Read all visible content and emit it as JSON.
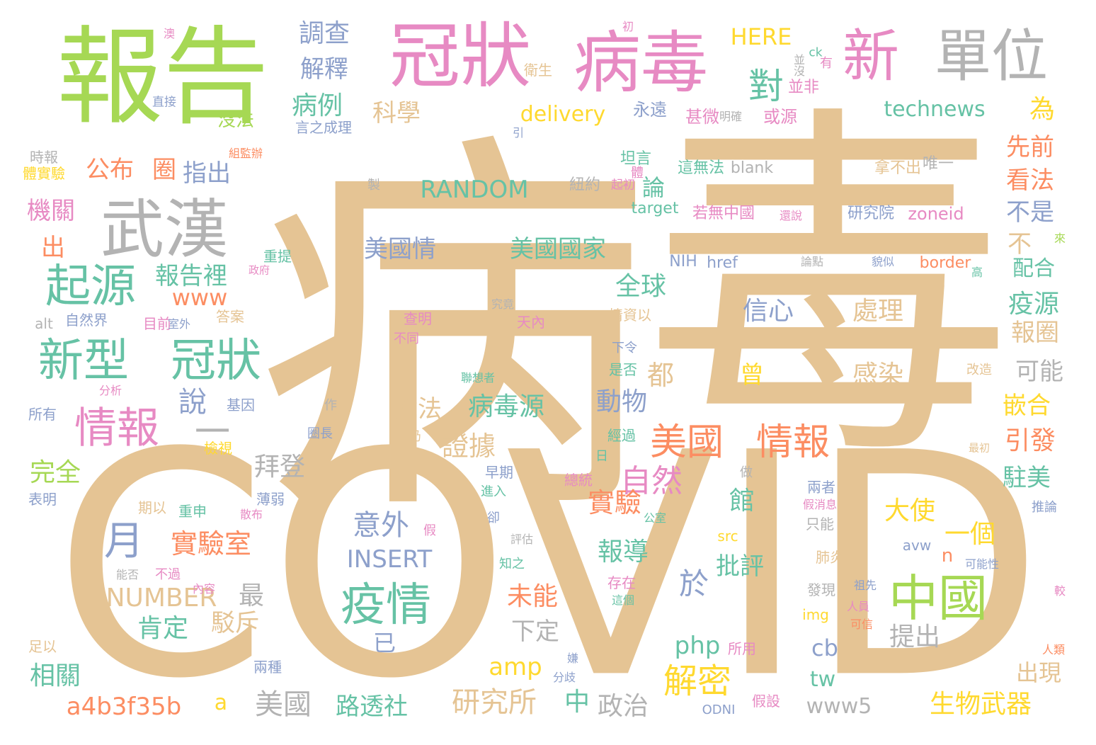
{
  "palette": {
    "tan": "#e5c494",
    "green": "#a6d854",
    "pink": "#e78ac3",
    "gray": "#b3b3b3",
    "teal": "#66c2a5",
    "blue": "#8da0cb",
    "orange": "#fc8d62",
    "yellow": "#ffd92f"
  },
  "words": [
    {
      "text": "病",
      "color": "tan"
    },
    {
      "text": "毒",
      "color": "tan"
    },
    {
      "text": "COVID",
      "color": "tan"
    },
    {
      "text": "報告",
      "color": "green"
    },
    {
      "text": "冠狀",
      "color": "pink"
    },
    {
      "text": "病毒",
      "color": "pink"
    },
    {
      "text": "新",
      "color": "pink"
    },
    {
      "text": "單位",
      "color": "gray"
    },
    {
      "text": "武漢",
      "color": "gray"
    },
    {
      "text": "起源",
      "color": "teal"
    },
    {
      "text": "新型",
      "color": "teal"
    },
    {
      "text": "冠狀",
      "color": "teal"
    },
    {
      "text": "情報",
      "color": "pink"
    },
    {
      "text": "中國",
      "color": "green"
    },
    {
      "text": "疫情",
      "color": "teal"
    },
    {
      "text": "月",
      "color": "blue"
    },
    {
      "text": "美國",
      "color": "orange"
    },
    {
      "text": "情報",
      "color": "orange"
    },
    {
      "text": "對",
      "color": "teal"
    },
    {
      "text": "調查",
      "color": "blue"
    },
    {
      "text": "解釋",
      "color": "blue"
    },
    {
      "text": "病例",
      "color": "teal"
    },
    {
      "text": "沒法",
      "color": "green"
    },
    {
      "text": "科學",
      "color": "tan"
    },
    {
      "text": "delivery",
      "color": "yellow"
    },
    {
      "text": "HERE",
      "color": "yellow"
    },
    {
      "text": "technews",
      "color": "teal"
    },
    {
      "text": "為",
      "color": "yellow"
    },
    {
      "text": "先前",
      "color": "orange"
    },
    {
      "text": "看法",
      "color": "orange"
    },
    {
      "text": "不是",
      "color": "blue"
    },
    {
      "text": "公布",
      "color": "orange"
    },
    {
      "text": "圈",
      "color": "orange"
    },
    {
      "text": "指出",
      "color": "blue"
    },
    {
      "text": "RANDOM",
      "color": "teal"
    },
    {
      "text": "機關",
      "color": "pink"
    },
    {
      "text": "論",
      "color": "teal"
    },
    {
      "text": "出",
      "color": "orange"
    },
    {
      "text": "美國情",
      "color": "blue"
    },
    {
      "text": "美國國家",
      "color": "teal"
    },
    {
      "text": "報告裡",
      "color": "teal"
    },
    {
      "text": "www",
      "color": "orange"
    },
    {
      "text": "全球",
      "color": "teal"
    },
    {
      "text": "不",
      "color": "tan"
    },
    {
      "text": "配合",
      "color": "teal"
    },
    {
      "text": "疫源",
      "color": "teal"
    },
    {
      "text": "信心",
      "color": "blue"
    },
    {
      "text": "處理",
      "color": "tan"
    },
    {
      "text": "報圈",
      "color": "tan"
    },
    {
      "text": "都",
      "color": "tan"
    },
    {
      "text": "曾",
      "color": "yellow"
    },
    {
      "text": "感染",
      "color": "tan"
    },
    {
      "text": "可能",
      "color": "gray"
    },
    {
      "text": "說",
      "color": "blue"
    },
    {
      "text": "動物",
      "color": "blue"
    },
    {
      "text": "嵌合",
      "color": "yellow"
    },
    {
      "text": "一",
      "color": "gray"
    },
    {
      "text": "說法",
      "color": "tan"
    },
    {
      "text": "病毒源",
      "color": "teal"
    },
    {
      "text": "證據",
      "color": "tan"
    },
    {
      "text": "引發",
      "color": "orange"
    },
    {
      "text": "拜登",
      "color": "gray"
    },
    {
      "text": "自然",
      "color": "pink"
    },
    {
      "text": "駐美",
      "color": "teal"
    },
    {
      "text": "完全",
      "color": "green"
    },
    {
      "text": "館",
      "color": "teal"
    },
    {
      "text": "意外",
      "color": "blue"
    },
    {
      "text": "實驗",
      "color": "orange"
    },
    {
      "text": "大使",
      "color": "yellow"
    },
    {
      "text": "一個",
      "color": "yellow"
    },
    {
      "text": "實驗室",
      "color": "orange"
    },
    {
      "text": "INSERT",
      "color": "blue"
    },
    {
      "text": "報導",
      "color": "teal"
    },
    {
      "text": "n",
      "color": "orange"
    },
    {
      "text": "批評",
      "color": "teal"
    },
    {
      "text": "NUMBER",
      "color": "tan"
    },
    {
      "text": "最",
      "color": "gray"
    },
    {
      "text": "於",
      "color": "blue"
    },
    {
      "text": "未能",
      "color": "orange"
    },
    {
      "text": "肯定",
      "color": "teal"
    },
    {
      "text": "駁斥",
      "color": "tan"
    },
    {
      "text": "下定",
      "color": "gray"
    },
    {
      "text": "提出",
      "color": "gray"
    },
    {
      "text": "已",
      "color": "blue"
    },
    {
      "text": "php",
      "color": "teal"
    },
    {
      "text": "cb",
      "color": "blue"
    },
    {
      "text": "amp",
      "color": "yellow"
    },
    {
      "text": "解密",
      "color": "yellow"
    },
    {
      "text": "tw",
      "color": "teal"
    },
    {
      "text": "出現",
      "color": "tan"
    },
    {
      "text": "相關",
      "color": "teal"
    },
    {
      "text": "美國",
      "color": "gray"
    },
    {
      "text": "研究所",
      "color": "tan"
    },
    {
      "text": "中",
      "color": "teal"
    },
    {
      "text": "政治",
      "color": "gray"
    },
    {
      "text": "www5",
      "color": "gray"
    },
    {
      "text": "生物武器",
      "color": "yellow"
    },
    {
      "text": "a4b3f35b",
      "color": "orange"
    },
    {
      "text": "a",
      "color": "yellow"
    },
    {
      "text": "路透社",
      "color": "teal"
    },
    {
      "text": "永遠",
      "color": "blue"
    },
    {
      "text": "甚微",
      "color": "pink"
    },
    {
      "text": "或源",
      "color": "pink"
    },
    {
      "text": "並非",
      "color": "pink"
    },
    {
      "text": "坦言",
      "color": "teal"
    },
    {
      "text": "這無法",
      "color": "teal"
    },
    {
      "text": "blank",
      "color": "gray"
    },
    {
      "text": "拿不出",
      "color": "tan"
    },
    {
      "text": "唯一",
      "color": "gray"
    },
    {
      "text": "紐約",
      "color": "gray"
    },
    {
      "text": "target",
      "color": "teal"
    },
    {
      "text": "若無中國",
      "color": "pink"
    },
    {
      "text": "研究院",
      "color": "blue"
    },
    {
      "text": "zoneid",
      "color": "pink"
    },
    {
      "text": "NIH",
      "color": "blue"
    },
    {
      "text": "href",
      "color": "blue"
    },
    {
      "text": "border",
      "color": "orange"
    },
    {
      "text": "時報",
      "color": "gray"
    },
    {
      "text": "體實驗",
      "color": "yellow"
    },
    {
      "text": "直接",
      "color": "blue"
    },
    {
      "text": "言之成理",
      "color": "blue"
    },
    {
      "text": "自然界",
      "color": "blue"
    },
    {
      "text": "目前",
      "color": "pink"
    },
    {
      "text": "答案",
      "color": "tan"
    },
    {
      "text": "alt",
      "color": "gray"
    },
    {
      "text": "查明",
      "color": "pink"
    },
    {
      "text": "天內",
      "color": "pink"
    },
    {
      "text": "情資以",
      "color": "tan"
    },
    {
      "text": "下令",
      "color": "blue"
    },
    {
      "text": "是否",
      "color": "teal"
    },
    {
      "text": "基因",
      "color": "blue"
    },
    {
      "text": "所有",
      "color": "blue"
    },
    {
      "text": "檢視",
      "color": "yellow"
    },
    {
      "text": "表明",
      "color": "blue"
    },
    {
      "text": "期以",
      "color": "tan"
    },
    {
      "text": "重申",
      "color": "teal"
    },
    {
      "text": "薄弱",
      "color": "blue"
    },
    {
      "text": "早期",
      "color": "blue"
    },
    {
      "text": "總統",
      "color": "pink"
    },
    {
      "text": "兩者",
      "color": "blue"
    },
    {
      "text": "只能",
      "color": "gray"
    },
    {
      "text": "src",
      "color": "yellow"
    },
    {
      "text": "avw",
      "color": "blue"
    },
    {
      "text": "肺炎",
      "color": "tan"
    },
    {
      "text": "發現",
      "color": "gray"
    },
    {
      "text": "img",
      "color": "yellow"
    },
    {
      "text": "足以",
      "color": "tan"
    },
    {
      "text": "兩種",
      "color": "blue"
    },
    {
      "text": "所用",
      "color": "pink"
    },
    {
      "text": "ODNI",
      "color": "blue"
    },
    {
      "text": "假設",
      "color": "pink"
    },
    {
      "text": "存在",
      "color": "pink"
    },
    {
      "text": "推論",
      "color": "blue"
    },
    {
      "text": "衛生",
      "color": "tan"
    },
    {
      "text": "有",
      "color": "pink"
    },
    {
      "text": "並沒",
      "color": "gray"
    },
    {
      "text": "ck",
      "color": "teal"
    },
    {
      "text": "澳",
      "color": "pink"
    },
    {
      "text": "初",
      "color": "pink"
    },
    {
      "text": "明確",
      "color": "gray"
    },
    {
      "text": "引",
      "color": "blue"
    },
    {
      "text": "製",
      "color": "gray"
    },
    {
      "text": "起初",
      "color": "pink"
    },
    {
      "text": "政府",
      "color": "pink"
    },
    {
      "text": "重提",
      "color": "teal"
    },
    {
      "text": "室外",
      "color": "blue"
    },
    {
      "text": "不同",
      "color": "pink"
    },
    {
      "text": "作",
      "color": "gray"
    },
    {
      "text": "分析",
      "color": "pink"
    },
    {
      "text": "聯想者",
      "color": "teal"
    },
    {
      "text": "經過",
      "color": "teal"
    },
    {
      "text": "改造",
      "color": "tan"
    },
    {
      "text": "最初",
      "color": "tan"
    },
    {
      "text": "仍",
      "color": "tan"
    },
    {
      "text": "做",
      "color": "gray"
    },
    {
      "text": "進入",
      "color": "teal"
    },
    {
      "text": "散布",
      "color": "pink"
    },
    {
      "text": "卻",
      "color": "blue"
    },
    {
      "text": "評估",
      "color": "gray"
    },
    {
      "text": "知之",
      "color": "teal"
    },
    {
      "text": "能否",
      "color": "gray"
    },
    {
      "text": "不過",
      "color": "pink"
    },
    {
      "text": "內容",
      "color": "pink"
    },
    {
      "text": "這個",
      "color": "teal"
    },
    {
      "text": "祖先",
      "color": "blue"
    },
    {
      "text": "可信",
      "color": "orange"
    },
    {
      "text": "人員",
      "color": "pink"
    },
    {
      "text": "分歧",
      "color": "blue"
    },
    {
      "text": "可能性",
      "color": "blue"
    },
    {
      "text": "較",
      "color": "pink"
    },
    {
      "text": "人類",
      "color": "orange"
    },
    {
      "text": "假",
      "color": "pink"
    },
    {
      "text": "公室",
      "color": "teal"
    },
    {
      "text": "假消息",
      "color": "pink"
    },
    {
      "text": "究竟",
      "color": "gray"
    },
    {
      "text": "日",
      "color": "teal"
    },
    {
      "text": "高",
      "color": "teal"
    },
    {
      "text": "來",
      "color": "green"
    },
    {
      "text": "還說",
      "color": "pink"
    },
    {
      "text": "論點",
      "color": "gray"
    },
    {
      "text": "貌似",
      "color": "blue"
    },
    {
      "text": "嫌",
      "color": "blue"
    },
    {
      "text": "體",
      "color": "pink"
    },
    {
      "text": "圈長",
      "color": "blue"
    },
    {
      "text": "組監辦",
      "color": "orange"
    }
  ]
}
